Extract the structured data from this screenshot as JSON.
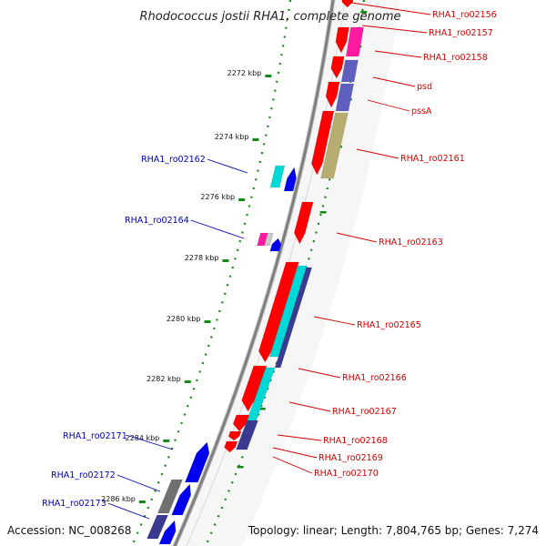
{
  "title": "Rhodococcus jostii RHA1, complete genome",
  "accession": "Accession: NC_008268",
  "topology": "Topology: linear; Length: 7,804,765 bp; Genes: 7,274",
  "colors": {
    "forward_label": "#d40000",
    "reverse_label": "#0000b4",
    "backbone": "#7f7f7f",
    "tick": "#138a13",
    "red": "#ff0000",
    "blue": "#0000ee",
    "cyan": "#00d8d8",
    "magenta": "#ff1aa0",
    "slate": "#5f5fc0",
    "olive": "#b8ad70",
    "navy": "#3a3a90",
    "gray": "#707070"
  },
  "kbp_labels": [
    "2272 kbp",
    "2274 kbp",
    "2276 kbp",
    "2278 kbp",
    "2280 kbp",
    "2282 kbp",
    "2284 kbp",
    "2286 kbp"
  ],
  "genes": {
    "forward": [
      "RHA1_ro02156",
      "RHA1_ro02157",
      "RHA1_ro02158",
      "psd",
      "pssA",
      "RHA1_ro02161",
      "RHA1_ro02163",
      "RHA1_ro02165",
      "RHA1_ro02166",
      "RHA1_ro02167",
      "RHA1_ro02168",
      "RHA1_ro02169",
      "RHA1_ro02170"
    ],
    "reverse": [
      "RHA1_ro02162",
      "RHA1_ro02164",
      "RHA1_ro02171",
      "RHA1_ro02172",
      "RHA1_ro02173"
    ]
  }
}
